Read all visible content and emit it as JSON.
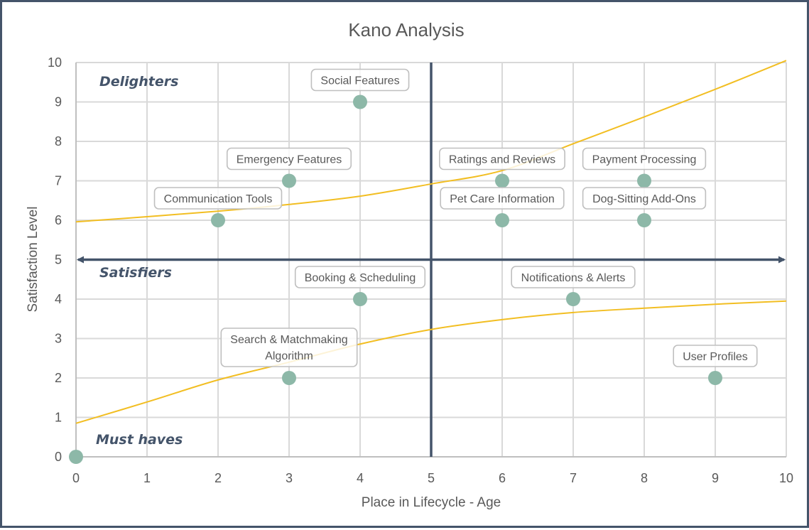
{
  "colors": {
    "frame": "#44546A",
    "grid": "#D9D9D9",
    "quadrant_line": "#44546A",
    "point": "#8DB8A8",
    "trendline": "#F2BE22",
    "label_border": "#BFBFBF",
    "text": "#595959",
    "zone_text": "#44546A"
  },
  "chart_data": {
    "type": "scatter",
    "title": "Kano Analysis",
    "xlabel": "Place in Lifecycle - Age",
    "ylabel": "Satisfaction Level",
    "xlim": [
      0,
      10
    ],
    "ylim": [
      0,
      10
    ],
    "xticks": [
      "0",
      "1",
      "2",
      "3",
      "4",
      "5",
      "6",
      "7",
      "8",
      "9",
      "10"
    ],
    "yticks": [
      "0",
      "1",
      "2",
      "3",
      "4",
      "5",
      "6",
      "7",
      "8",
      "9",
      "10"
    ],
    "grid": true,
    "points": [
      {
        "label": "Social Features",
        "x": 4,
        "y": 9
      },
      {
        "label": "Emergency Features",
        "x": 3,
        "y": 7
      },
      {
        "label": "Communication Tools",
        "x": 2,
        "y": 6
      },
      {
        "label": "Ratings and Reviews",
        "x": 6,
        "y": 7
      },
      {
        "label": "Pet Care Information",
        "x": 6,
        "y": 6
      },
      {
        "label": "Payment Processing",
        "x": 8,
        "y": 7
      },
      {
        "label": "Dog-Sitting Add-Ons",
        "x": 8,
        "y": 6
      },
      {
        "label": "Booking & Scheduling",
        "x": 4,
        "y": 4
      },
      {
        "label": "Notifications & Alerts",
        "x": 7,
        "y": 4
      },
      {
        "label": "Search & Matchmaking Algorithm",
        "x": 3,
        "y": 2
      },
      {
        "label": "User Profiles",
        "x": 9,
        "y": 2
      },
      {
        "label": "",
        "x": 0,
        "y": 0
      }
    ],
    "quadrant_lines": {
      "vertical_x": 5,
      "horizontal_y": 5
    },
    "zones": [
      "Delighters",
      "Satisfiers",
      "Must haves"
    ],
    "trendlines": [
      {
        "name": "delighters-curve",
        "x": [
          0,
          1,
          2,
          3,
          4,
          5,
          6,
          7,
          8,
          9,
          10
        ],
        "y": [
          5.96,
          6.09,
          6.23,
          6.4,
          6.61,
          6.92,
          7.26,
          7.94,
          8.62,
          9.32,
          10.05
        ]
      },
      {
        "name": "must-haves-curve",
        "x": [
          0,
          1,
          2,
          3,
          4,
          5,
          6,
          7,
          8,
          9,
          10
        ],
        "y": [
          0.85,
          1.39,
          1.95,
          2.4,
          2.86,
          3.23,
          3.48,
          3.66,
          3.77,
          3.87,
          3.95
        ]
      }
    ]
  }
}
